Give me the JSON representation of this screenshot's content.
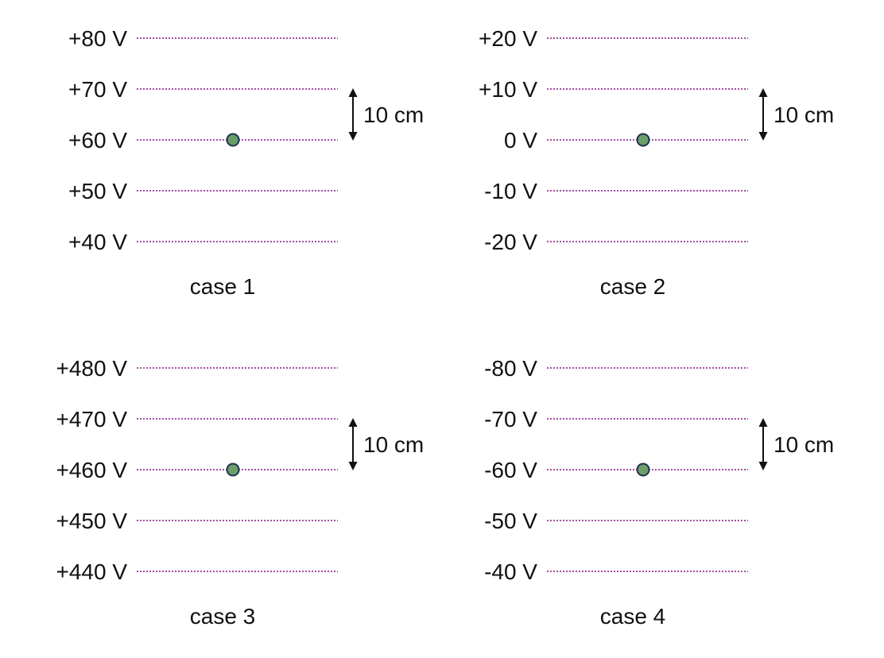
{
  "panels": [
    {
      "name": "case 1",
      "label": "case 1",
      "potentials": [
        "+80 V",
        "+70 V",
        "+60 V",
        "+50 V",
        "+40 V"
      ],
      "charge_on_line": 2,
      "separation_label": "10 cm"
    },
    {
      "name": "case 2",
      "label": "case 2",
      "potentials": [
        "+20 V",
        "+10 V",
        "0 V",
        "-10 V",
        "-20 V"
      ],
      "charge_on_line": 2,
      "separation_label": "10 cm"
    },
    {
      "name": "case 3",
      "label": "case 3",
      "potentials": [
        "+480 V",
        "+470 V",
        "+460 V",
        "+450 V",
        "+440 V"
      ],
      "charge_on_line": 2,
      "separation_label": "10 cm"
    },
    {
      "name": "case 4",
      "label": "case 4",
      "potentials": [
        "-80 V",
        "-70 V",
        "-60 V",
        "-50 V",
        "-40 V"
      ],
      "charge_on_line": 2,
      "separation_label": "10 cm"
    }
  ],
  "colors": {
    "equipotential_line": "#a64ca6",
    "charge_fill": "#6b9e68",
    "charge_stroke": "#1f3350",
    "arrow": "#111111",
    "text": "#111111"
  }
}
